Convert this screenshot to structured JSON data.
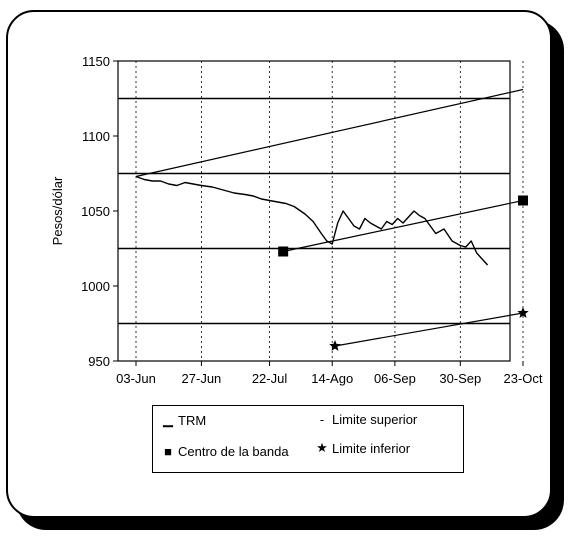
{
  "chart_data": {
    "type": "line",
    "title": "",
    "xlabel": "",
    "ylabel": "Pesos/dólar",
    "ylim": [
      950,
      1150
    ],
    "yticks": [
      950,
      1000,
      1050,
      1100,
      1150
    ],
    "x_tick_labels": [
      "03-Jun",
      "27-Jun",
      "22-Jul",
      "14-Ago",
      "06-Sep",
      "30-Sep",
      "23-Oct"
    ],
    "x_tick_days": [
      0,
      24,
      49,
      72,
      95,
      119,
      142
    ],
    "x_range_days": [
      0,
      142
    ],
    "horizontal_lines": [
      975,
      1025,
      1075,
      1125
    ],
    "series": [
      {
        "name": "TRM",
        "marker": "line",
        "x_days": [
          0,
          3,
          6,
          9,
          12,
          15,
          18,
          21,
          24,
          28,
          32,
          36,
          40,
          43,
          46,
          49,
          52,
          55,
          58,
          62,
          65,
          68,
          70,
          72,
          74,
          76,
          78,
          80,
          82,
          84,
          86,
          88,
          90,
          92,
          94,
          96,
          98,
          100,
          102,
          104,
          106,
          108,
          110,
          113,
          116,
          119,
          121,
          123,
          125,
          127,
          129
        ],
        "values": [
          1073,
          1071,
          1070,
          1070,
          1068,
          1067,
          1069,
          1068,
          1067,
          1066,
          1064,
          1062,
          1061,
          1060,
          1058,
          1057,
          1056,
          1055,
          1053,
          1048,
          1043,
          1035,
          1030,
          1028,
          1042,
          1050,
          1045,
          1040,
          1038,
          1045,
          1042,
          1040,
          1038,
          1043,
          1041,
          1045,
          1042,
          1046,
          1050,
          1047,
          1045,
          1040,
          1035,
          1038,
          1030,
          1027,
          1026,
          1030,
          1022,
          1018,
          1014
        ]
      },
      {
        "name": "Limite superior",
        "marker": "line",
        "x_days": [
          0,
          142
        ],
        "values": [
          1073,
          1131
        ]
      },
      {
        "name": "Centro de la banda",
        "marker": "square",
        "x_days": [
          54,
          142
        ],
        "values": [
          1023,
          1057
        ],
        "marked_points": [
          0,
          1
        ]
      },
      {
        "name": "Limite inferior",
        "marker": "star",
        "x_days": [
          73,
          142
        ],
        "values": [
          960,
          982
        ],
        "marked_points": [
          0,
          1
        ]
      }
    ],
    "grid": false,
    "legend_position": "bottom"
  },
  "legend": {
    "trm": "TRM",
    "limite_superior": "Limite superior",
    "centro": "Centro de la banda",
    "limite_inferior": "Limite inferior"
  }
}
